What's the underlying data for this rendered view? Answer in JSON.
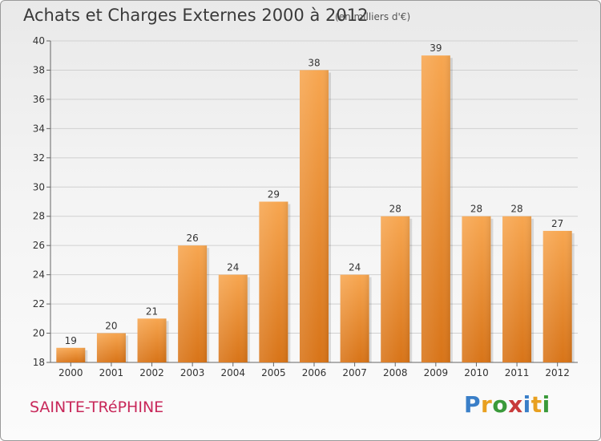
{
  "header": {
    "title": "Achats et Charges Externes 2000 à 2012",
    "unit": "(en milliers d'€)"
  },
  "footer": {
    "commune": "SAINTE-TRéPHINE",
    "logo_letters": [
      "P",
      "r",
      "o",
      "x",
      "i",
      "t",
      "i"
    ],
    "logo_colors": [
      "#3a7fc8",
      "#e8a020",
      "#3a9a3a",
      "#c83a3a",
      "#3a7fc8",
      "#e8a020",
      "#3a9a3a"
    ]
  },
  "chart_data": {
    "type": "bar",
    "title": "Achats et Charges Externes 2000 à 2012",
    "categories": [
      "2000",
      "2001",
      "2002",
      "2003",
      "2004",
      "2005",
      "2006",
      "2007",
      "2008",
      "2009",
      "2010",
      "2011",
      "2012"
    ],
    "values": [
      19,
      20,
      21,
      26,
      24,
      29,
      38,
      24,
      28,
      39,
      28,
      28,
      27
    ],
    "ylim": [
      18,
      40
    ],
    "yticks": [
      18,
      20,
      22,
      24,
      26,
      28,
      30,
      32,
      34,
      36,
      38,
      40
    ],
    "grid": true,
    "bar_color": "#f0923a"
  }
}
